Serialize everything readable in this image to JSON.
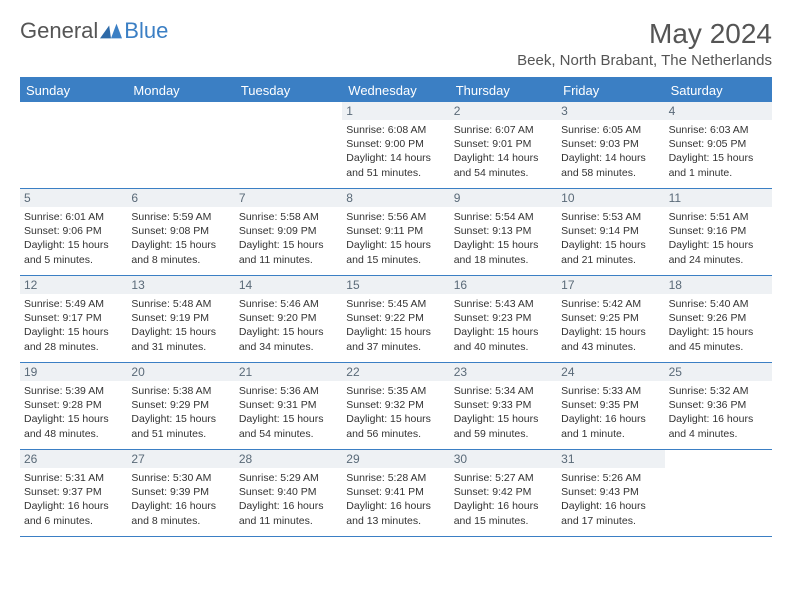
{
  "brand": {
    "word1": "General",
    "word2": "Blue"
  },
  "title": "May 2024",
  "location": "Beek, North Brabant, The Netherlands",
  "colors": {
    "accent": "#3b7fc4",
    "header_bg": "#3b7fc4",
    "header_text": "#ffffff",
    "daynum_bg": "#eef1f4",
    "daynum_text": "#5a6a78",
    "body_text": "#333333",
    "page_bg": "#ffffff"
  },
  "day_names": [
    "Sunday",
    "Monday",
    "Tuesday",
    "Wednesday",
    "Thursday",
    "Friday",
    "Saturday"
  ],
  "weeks": [
    [
      {
        "day": "",
        "sunrise": "",
        "sunset": "",
        "daylight": ""
      },
      {
        "day": "",
        "sunrise": "",
        "sunset": "",
        "daylight": ""
      },
      {
        "day": "",
        "sunrise": "",
        "sunset": "",
        "daylight": ""
      },
      {
        "day": "1",
        "sunrise": "Sunrise: 6:08 AM",
        "sunset": "Sunset: 9:00 PM",
        "daylight": "Daylight: 14 hours and 51 minutes."
      },
      {
        "day": "2",
        "sunrise": "Sunrise: 6:07 AM",
        "sunset": "Sunset: 9:01 PM",
        "daylight": "Daylight: 14 hours and 54 minutes."
      },
      {
        "day": "3",
        "sunrise": "Sunrise: 6:05 AM",
        "sunset": "Sunset: 9:03 PM",
        "daylight": "Daylight: 14 hours and 58 minutes."
      },
      {
        "day": "4",
        "sunrise": "Sunrise: 6:03 AM",
        "sunset": "Sunset: 9:05 PM",
        "daylight": "Daylight: 15 hours and 1 minute."
      }
    ],
    [
      {
        "day": "5",
        "sunrise": "Sunrise: 6:01 AM",
        "sunset": "Sunset: 9:06 PM",
        "daylight": "Daylight: 15 hours and 5 minutes."
      },
      {
        "day": "6",
        "sunrise": "Sunrise: 5:59 AM",
        "sunset": "Sunset: 9:08 PM",
        "daylight": "Daylight: 15 hours and 8 minutes."
      },
      {
        "day": "7",
        "sunrise": "Sunrise: 5:58 AM",
        "sunset": "Sunset: 9:09 PM",
        "daylight": "Daylight: 15 hours and 11 minutes."
      },
      {
        "day": "8",
        "sunrise": "Sunrise: 5:56 AM",
        "sunset": "Sunset: 9:11 PM",
        "daylight": "Daylight: 15 hours and 15 minutes."
      },
      {
        "day": "9",
        "sunrise": "Sunrise: 5:54 AM",
        "sunset": "Sunset: 9:13 PM",
        "daylight": "Daylight: 15 hours and 18 minutes."
      },
      {
        "day": "10",
        "sunrise": "Sunrise: 5:53 AM",
        "sunset": "Sunset: 9:14 PM",
        "daylight": "Daylight: 15 hours and 21 minutes."
      },
      {
        "day": "11",
        "sunrise": "Sunrise: 5:51 AM",
        "sunset": "Sunset: 9:16 PM",
        "daylight": "Daylight: 15 hours and 24 minutes."
      }
    ],
    [
      {
        "day": "12",
        "sunrise": "Sunrise: 5:49 AM",
        "sunset": "Sunset: 9:17 PM",
        "daylight": "Daylight: 15 hours and 28 minutes."
      },
      {
        "day": "13",
        "sunrise": "Sunrise: 5:48 AM",
        "sunset": "Sunset: 9:19 PM",
        "daylight": "Daylight: 15 hours and 31 minutes."
      },
      {
        "day": "14",
        "sunrise": "Sunrise: 5:46 AM",
        "sunset": "Sunset: 9:20 PM",
        "daylight": "Daylight: 15 hours and 34 minutes."
      },
      {
        "day": "15",
        "sunrise": "Sunrise: 5:45 AM",
        "sunset": "Sunset: 9:22 PM",
        "daylight": "Daylight: 15 hours and 37 minutes."
      },
      {
        "day": "16",
        "sunrise": "Sunrise: 5:43 AM",
        "sunset": "Sunset: 9:23 PM",
        "daylight": "Daylight: 15 hours and 40 minutes."
      },
      {
        "day": "17",
        "sunrise": "Sunrise: 5:42 AM",
        "sunset": "Sunset: 9:25 PM",
        "daylight": "Daylight: 15 hours and 43 minutes."
      },
      {
        "day": "18",
        "sunrise": "Sunrise: 5:40 AM",
        "sunset": "Sunset: 9:26 PM",
        "daylight": "Daylight: 15 hours and 45 minutes."
      }
    ],
    [
      {
        "day": "19",
        "sunrise": "Sunrise: 5:39 AM",
        "sunset": "Sunset: 9:28 PM",
        "daylight": "Daylight: 15 hours and 48 minutes."
      },
      {
        "day": "20",
        "sunrise": "Sunrise: 5:38 AM",
        "sunset": "Sunset: 9:29 PM",
        "daylight": "Daylight: 15 hours and 51 minutes."
      },
      {
        "day": "21",
        "sunrise": "Sunrise: 5:36 AM",
        "sunset": "Sunset: 9:31 PM",
        "daylight": "Daylight: 15 hours and 54 minutes."
      },
      {
        "day": "22",
        "sunrise": "Sunrise: 5:35 AM",
        "sunset": "Sunset: 9:32 PM",
        "daylight": "Daylight: 15 hours and 56 minutes."
      },
      {
        "day": "23",
        "sunrise": "Sunrise: 5:34 AM",
        "sunset": "Sunset: 9:33 PM",
        "daylight": "Daylight: 15 hours and 59 minutes."
      },
      {
        "day": "24",
        "sunrise": "Sunrise: 5:33 AM",
        "sunset": "Sunset: 9:35 PM",
        "daylight": "Daylight: 16 hours and 1 minute."
      },
      {
        "day": "25",
        "sunrise": "Sunrise: 5:32 AM",
        "sunset": "Sunset: 9:36 PM",
        "daylight": "Daylight: 16 hours and 4 minutes."
      }
    ],
    [
      {
        "day": "26",
        "sunrise": "Sunrise: 5:31 AM",
        "sunset": "Sunset: 9:37 PM",
        "daylight": "Daylight: 16 hours and 6 minutes."
      },
      {
        "day": "27",
        "sunrise": "Sunrise: 5:30 AM",
        "sunset": "Sunset: 9:39 PM",
        "daylight": "Daylight: 16 hours and 8 minutes."
      },
      {
        "day": "28",
        "sunrise": "Sunrise: 5:29 AM",
        "sunset": "Sunset: 9:40 PM",
        "daylight": "Daylight: 16 hours and 11 minutes."
      },
      {
        "day": "29",
        "sunrise": "Sunrise: 5:28 AM",
        "sunset": "Sunset: 9:41 PM",
        "daylight": "Daylight: 16 hours and 13 minutes."
      },
      {
        "day": "30",
        "sunrise": "Sunrise: 5:27 AM",
        "sunset": "Sunset: 9:42 PM",
        "daylight": "Daylight: 16 hours and 15 minutes."
      },
      {
        "day": "31",
        "sunrise": "Sunrise: 5:26 AM",
        "sunset": "Sunset: 9:43 PM",
        "daylight": "Daylight: 16 hours and 17 minutes."
      },
      {
        "day": "",
        "sunrise": "",
        "sunset": "",
        "daylight": ""
      }
    ]
  ]
}
